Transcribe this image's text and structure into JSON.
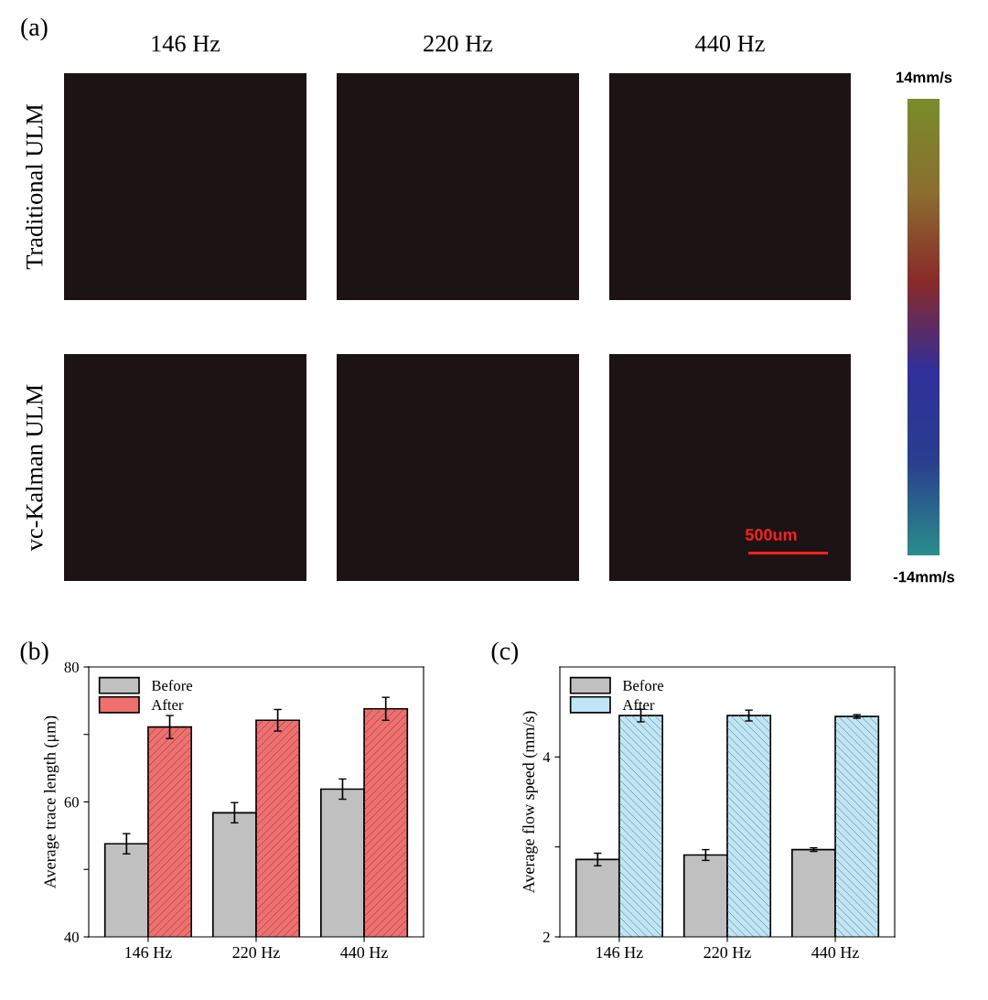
{
  "chart_data": [
    {
      "type": "other",
      "title": "(a)",
      "categories": [
        "146 Hz",
        "220 Hz",
        "440 Hz"
      ],
      "y_categories": [
        "Traditional ULM",
        "vc-Kalman ULM"
      ],
      "annotations": [
        "14mm/s",
        "-14mm/s",
        "500um"
      ]
    },
    {
      "type": "bar",
      "title": "(b)",
      "ylabel": "Average trace length (μm)",
      "categories": [
        "146 Hz",
        "220 Hz",
        "440 Hz"
      ],
      "series": [
        {
          "name": "Before",
          "color": "#c0c0c0",
          "values": [
            53.8,
            58.4,
            61.9
          ],
          "errors": [
            1.5,
            1.5,
            1.5
          ]
        },
        {
          "name": "After",
          "color": "#f07070",
          "values": [
            71.1,
            72.1,
            73.8
          ],
          "errors": [
            1.7,
            1.6,
            1.7
          ]
        }
      ],
      "ylim": [
        40,
        80
      ],
      "yticks": [
        40,
        {
          "value": 50,
          "label": null
        },
        60,
        {
          "value": 70,
          "label": null
        },
        80
      ],
      "legend": "top left",
      "grid": false
    },
    {
      "type": "bar",
      "title": "(c)",
      "ylabel": "Average flow speed (mm/s)",
      "categories": [
        "146 Hz",
        "220 Hz",
        "440 Hz"
      ],
      "series": [
        {
          "name": "Before",
          "color": "#c0c0c0",
          "values": [
            2.86,
            2.91,
            2.97
          ],
          "errors": [
            0.07,
            0.06,
            0.02
          ]
        },
        {
          "name": "After",
          "color": "#bfe6f5",
          "values": [
            4.46,
            4.46,
            4.45
          ],
          "errors": [
            0.07,
            0.06,
            0.02
          ]
        }
      ],
      "ylim": [
        2,
        5
      ],
      "yticks": [
        2,
        {
          "value": 3,
          "label": null
        },
        4
      ],
      "legend": "top left",
      "grid": false
    }
  ]
}
